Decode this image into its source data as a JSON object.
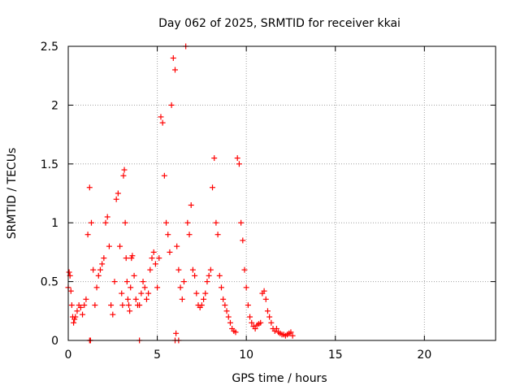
{
  "chart_data": {
    "type": "scatter",
    "title": "Day 062 of 2025, SRMTID for receiver kkai",
    "xlabel": "GPS time / hours",
    "ylabel": "SRMTID / TECUs",
    "xlim": [
      0,
      24
    ],
    "ylim": [
      0,
      2.5
    ],
    "xticks": [
      0,
      5,
      10,
      15,
      20
    ],
    "xtick_labels": [
      "0",
      "5",
      "10",
      "15",
      "20"
    ],
    "yticks": [
      0,
      0.5,
      1,
      1.5,
      2,
      2.5
    ],
    "ytick_labels": [
      "0",
      "0.5",
      "1",
      "1.5",
      "2",
      "2.5"
    ],
    "grid": true,
    "marker": "+",
    "color": "#ff0000",
    "series": [
      {
        "name": "SRMTID",
        "x": [
          0.0,
          0.05,
          0.1,
          0.15,
          0.2,
          0.25,
          0.3,
          0.35,
          0.4,
          0.5,
          0.6,
          0.7,
          0.8,
          0.9,
          1.0,
          1.1,
          1.2,
          1.3,
          1.4,
          1.5,
          1.6,
          1.7,
          1.8,
          1.9,
          2.0,
          2.1,
          2.2,
          2.3,
          2.4,
          2.5,
          2.6,
          2.7,
          2.8,
          2.9,
          3.0,
          3.05,
          3.1,
          3.15,
          3.2,
          3.25,
          3.3,
          3.35,
          3.4,
          3.45,
          3.5,
          3.55,
          3.6,
          3.7,
          3.8,
          3.9,
          4.0,
          4.1,
          4.2,
          4.3,
          4.4,
          4.5,
          4.6,
          4.7,
          4.8,
          4.9,
          5.0,
          5.1,
          5.2,
          5.3,
          5.4,
          5.5,
          5.6,
          5.7,
          5.8,
          5.9,
          6.0,
          6.1,
          6.2,
          6.3,
          6.4,
          6.5,
          6.6,
          6.7,
          6.8,
          6.9,
          7.0,
          7.1,
          7.2,
          7.3,
          7.4,
          7.5,
          7.6,
          7.7,
          7.8,
          7.9,
          8.0,
          8.1,
          8.2,
          8.3,
          8.4,
          8.5,
          8.6,
          8.7,
          8.8,
          8.9,
          9.0,
          9.1,
          9.2,
          9.3,
          9.4,
          9.5,
          9.6,
          9.7,
          9.8,
          9.9,
          10.0,
          10.1,
          10.2,
          10.3,
          10.4,
          10.5,
          10.6,
          10.7,
          10.8,
          10.9,
          11.0,
          11.1,
          11.2,
          11.3,
          11.4,
          11.5,
          11.6,
          11.7,
          11.8,
          11.9,
          12.0,
          12.1,
          12.2,
          12.3,
          12.4,
          12.5,
          12.6,
          1.2,
          1.25,
          4.0,
          6.0,
          6.05,
          6.2
        ],
        "y": [
          0.45,
          0.58,
          0.55,
          0.42,
          0.3,
          0.2,
          0.15,
          0.18,
          0.2,
          0.25,
          0.3,
          0.28,
          0.22,
          0.3,
          0.35,
          0.9,
          1.3,
          1.0,
          0.6,
          0.3,
          0.45,
          0.55,
          0.6,
          0.65,
          0.7,
          1.0,
          1.05,
          0.8,
          0.3,
          0.22,
          0.5,
          1.2,
          1.25,
          0.8,
          0.4,
          0.3,
          1.4,
          1.45,
          1.0,
          0.7,
          0.5,
          0.35,
          0.3,
          0.25,
          0.45,
          0.7,
          0.72,
          0.55,
          0.35,
          0.3,
          0.3,
          0.4,
          0.5,
          0.45,
          0.35,
          0.4,
          0.6,
          0.7,
          0.75,
          0.65,
          0.45,
          0.7,
          1.9,
          1.85,
          1.4,
          1.0,
          0.9,
          0.75,
          2.0,
          2.4,
          2.3,
          0.8,
          0.6,
          0.45,
          0.35,
          0.5,
          2.5,
          1.0,
          0.9,
          1.15,
          0.6,
          0.55,
          0.4,
          0.3,
          0.28,
          0.3,
          0.35,
          0.4,
          0.5,
          0.55,
          0.6,
          1.3,
          1.55,
          1.0,
          0.9,
          0.55,
          0.45,
          0.35,
          0.3,
          0.25,
          0.2,
          0.15,
          0.1,
          0.08,
          0.07,
          1.55,
          1.5,
          1.0,
          0.85,
          0.6,
          0.45,
          0.3,
          0.2,
          0.15,
          0.12,
          0.1,
          0.13,
          0.14,
          0.15,
          0.4,
          0.42,
          0.35,
          0.25,
          0.2,
          0.15,
          0.1,
          0.08,
          0.1,
          0.07,
          0.06,
          0.05,
          0.05,
          0.04,
          0.05,
          0.06,
          0.07,
          0.04,
          0.0,
          0.0,
          0.0,
          0.0,
          0.06,
          0.0
        ]
      }
    ]
  }
}
